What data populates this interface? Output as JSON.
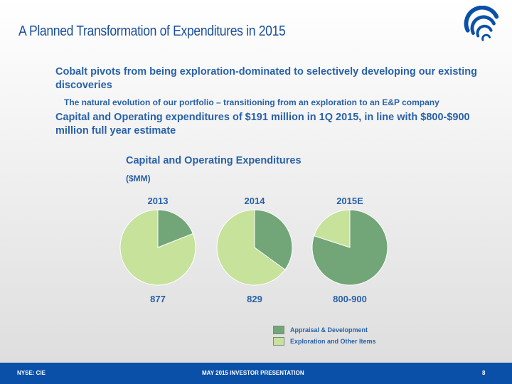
{
  "slide": {
    "title": "A Planned Transformation of Expenditures in 2015",
    "bullets": {
      "main1": "Cobalt pivots from being exploration-dominated to selectively developing our existing discoveries",
      "sub1": "The natural evolution of our portfolio – transitioning from an exploration to an E&P company",
      "main2": "Capital and Operating expenditures of $191 million in 1Q 2015, in line with $800-$900 million full year estimate"
    }
  },
  "chart_data": {
    "type": "pie",
    "title": "Capital and Operating Expenditures",
    "unit": "($MM)",
    "series_names": [
      "Appraisal & Development",
      "Exploration and Other Items"
    ],
    "colors": {
      "appraisal": "#72a577",
      "exploration": "#c6e29b"
    },
    "pies": [
      {
        "year": "2013",
        "total": "877",
        "appraisal_share": 0.19,
        "exploration_share": 0.81
      },
      {
        "year": "2014",
        "total": "829",
        "appraisal_share": 0.35,
        "exploration_share": 0.65
      },
      {
        "year": "2015E",
        "total": "800-900",
        "appraisal_share": 0.8,
        "exploration_share": 0.2
      }
    ]
  },
  "footer": {
    "left": "NYSE: CIE",
    "center": "MAY 2015 INVESTOR PRESENTATION",
    "page": "8"
  },
  "logo": {
    "icon": "cobalt-swirl-logo",
    "color": "#0a50a8"
  }
}
